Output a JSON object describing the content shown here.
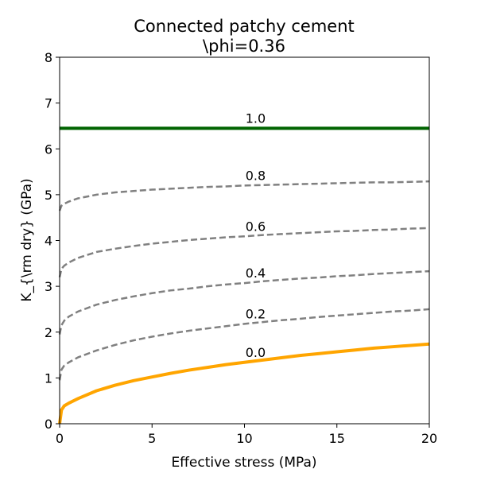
{
  "chart_data": {
    "type": "line",
    "title": "Connected patchy cement",
    "subtitle": "\\phi=0.36",
    "xlabel": "Effective stress (MPa)",
    "ylabel": "K_{\\rm dry} (GPa)",
    "xlim": [
      0,
      20
    ],
    "ylim": [
      0,
      8
    ],
    "xticks": [
      "0",
      "5",
      "10",
      "15",
      "20"
    ],
    "yticks": [
      "0",
      "1",
      "2",
      "3",
      "4",
      "5",
      "6",
      "7",
      "8"
    ],
    "grid": false,
    "x": [
      0,
      0.1,
      0.25,
      0.5,
      1,
      2,
      3,
      4,
      5,
      6,
      7,
      8,
      9,
      10,
      11,
      12,
      13,
      14,
      15,
      16,
      17,
      18,
      19,
      20
    ],
    "series": [
      {
        "label": "0.0",
        "color": "#ffa500",
        "style": "solid",
        "width": 4,
        "values": [
          0,
          0.3,
          0.39,
          0.45,
          0.55,
          0.72,
          0.84,
          0.94,
          1.02,
          1.1,
          1.17,
          1.23,
          1.29,
          1.34,
          1.39,
          1.44,
          1.49,
          1.53,
          1.57,
          1.61,
          1.65,
          1.68,
          1.71,
          1.74
        ]
      },
      {
        "label": "0.2",
        "color": "#808080",
        "style": "dashed",
        "width": 2.5,
        "values": [
          0.95,
          1.18,
          1.27,
          1.34,
          1.45,
          1.6,
          1.72,
          1.82,
          1.9,
          1.97,
          2.03,
          2.08,
          2.13,
          2.18,
          2.22,
          2.26,
          2.29,
          2.33,
          2.36,
          2.39,
          2.42,
          2.45,
          2.47,
          2.5
        ]
      },
      {
        "label": "0.4",
        "color": "#808080",
        "style": "dashed",
        "width": 2.5,
        "values": [
          1.95,
          2.15,
          2.25,
          2.34,
          2.45,
          2.6,
          2.7,
          2.78,
          2.85,
          2.91,
          2.95,
          3.0,
          3.04,
          3.07,
          3.11,
          3.14,
          3.17,
          3.19,
          3.22,
          3.24,
          3.27,
          3.29,
          3.31,
          3.33
        ]
      },
      {
        "label": "0.6",
        "color": "#808080",
        "style": "dashed",
        "width": 2.5,
        "values": [
          3.2,
          3.38,
          3.45,
          3.52,
          3.62,
          3.75,
          3.82,
          3.88,
          3.93,
          3.97,
          4.01,
          4.04,
          4.07,
          4.09,
          4.12,
          4.14,
          4.16,
          4.18,
          4.2,
          4.21,
          4.23,
          4.24,
          4.26,
          4.27
        ]
      },
      {
        "label": "0.8",
        "color": "#808080",
        "style": "dashed",
        "width": 2.5,
        "values": [
          4.65,
          4.76,
          4.8,
          4.85,
          4.92,
          5.0,
          5.05,
          5.08,
          5.11,
          5.13,
          5.15,
          5.17,
          5.18,
          5.2,
          5.21,
          5.22,
          5.23,
          5.24,
          5.25,
          5.26,
          5.27,
          5.27,
          5.28,
          5.29
        ]
      },
      {
        "label": "1.0",
        "color": "#006400",
        "style": "solid",
        "width": 4,
        "values": [
          6.45,
          6.45,
          6.45,
          6.45,
          6.45,
          6.45,
          6.45,
          6.45,
          6.45,
          6.45,
          6.45,
          6.45,
          6.45,
          6.45,
          6.45,
          6.45,
          6.45,
          6.45,
          6.45,
          6.45,
          6.45,
          6.45,
          6.45,
          6.45
        ]
      }
    ]
  }
}
